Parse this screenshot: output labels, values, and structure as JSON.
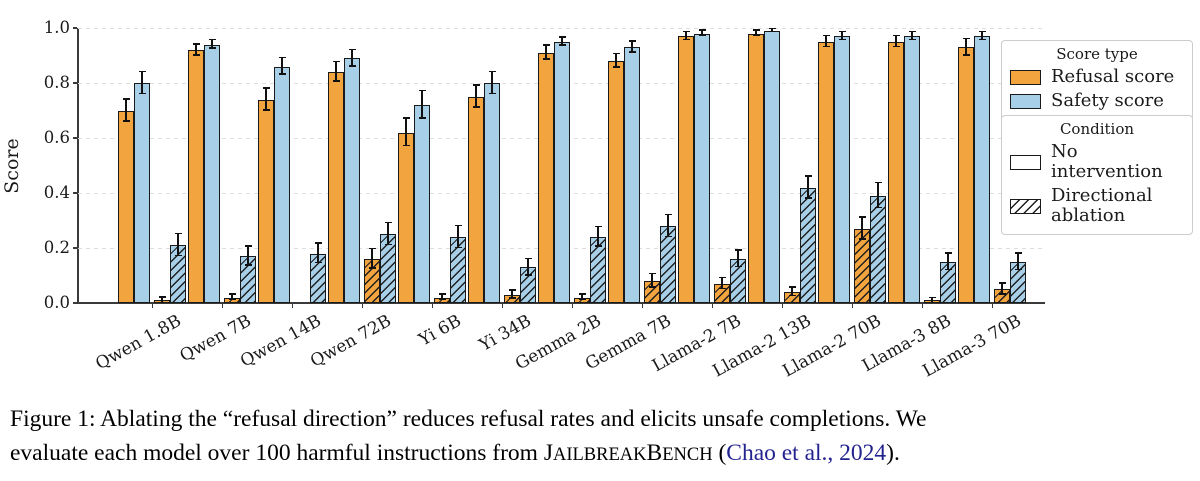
{
  "figure": {
    "ylabel": "Score",
    "yticks": [
      "0.0",
      "0.2",
      "0.4",
      "0.6",
      "0.8",
      "1.0"
    ],
    "legend": {
      "score_type": {
        "title": "Score type",
        "items": [
          {
            "label": "Refusal score",
            "color": "#F2A53E"
          },
          {
            "label": "Safety score",
            "color": "#A7D0E8"
          }
        ]
      },
      "condition": {
        "title": "Condition",
        "items": [
          {
            "label": "No intervention",
            "hatch": false
          },
          {
            "label": "Directional ablation",
            "hatch": true
          }
        ]
      }
    }
  },
  "chart_data": {
    "type": "bar",
    "title": "",
    "xlabel": "",
    "ylabel": "Score",
    "ylim": [
      0.0,
      1.0
    ],
    "ytick_values": [
      0.0,
      0.2,
      0.4,
      0.6,
      0.8,
      1.0
    ],
    "grid": "horizontal dashed",
    "legend_position": "upper right, outside axes",
    "categories": [
      "Qwen 1.8B",
      "Qwen 7B",
      "Qwen 14B",
      "Qwen 72B",
      "Yi 6B",
      "Yi 34B",
      "Gemma 2B",
      "Gemma 7B",
      "Llama-2 7B",
      "Llama-2 13B",
      "Llama-2 70B",
      "Llama-3 8B",
      "Llama-3 70B"
    ],
    "series": [
      {
        "name": "Refusal score — No intervention",
        "color": "#F2A53E",
        "hatch": false,
        "values": [
          0.7,
          0.92,
          0.74,
          0.84,
          0.62,
          0.75,
          0.91,
          0.88,
          0.97,
          0.98,
          0.95,
          0.95,
          0.93
        ],
        "errors": [
          0.04,
          0.02,
          0.04,
          0.035,
          0.05,
          0.04,
          0.025,
          0.025,
          0.015,
          0.01,
          0.02,
          0.02,
          0.03
        ]
      },
      {
        "name": "Safety score — No intervention",
        "color": "#A7D0E8",
        "hatch": false,
        "values": [
          0.8,
          0.94,
          0.86,
          0.89,
          0.72,
          0.8,
          0.95,
          0.93,
          0.98,
          0.99,
          0.97,
          0.97,
          0.97
        ],
        "errors": [
          0.04,
          0.015,
          0.03,
          0.03,
          0.05,
          0.04,
          0.015,
          0.02,
          0.01,
          0.005,
          0.015,
          0.015,
          0.015
        ]
      },
      {
        "name": "Refusal score — Directional ablation",
        "color": "#F2A53E",
        "hatch": true,
        "values": [
          0.01,
          0.02,
          0.0,
          0.16,
          0.02,
          0.03,
          0.02,
          0.08,
          0.07,
          0.04,
          0.27,
          0.01,
          0.05
        ],
        "errors": [
          0.01,
          0.01,
          0.0,
          0.035,
          0.01,
          0.015,
          0.01,
          0.025,
          0.02,
          0.015,
          0.04,
          0.008,
          0.02
        ]
      },
      {
        "name": "Safety score — Directional ablation",
        "color": "#A7D0E8",
        "hatch": true,
        "values": [
          0.21,
          0.17,
          0.18,
          0.25,
          0.24,
          0.13,
          0.24,
          0.28,
          0.16,
          0.42,
          0.39,
          0.15,
          0.15
        ],
        "errors": [
          0.04,
          0.035,
          0.035,
          0.04,
          0.04,
          0.03,
          0.035,
          0.04,
          0.03,
          0.04,
          0.045,
          0.03,
          0.03
        ]
      }
    ]
  },
  "caption": {
    "line1": "Figure 1: Ablating the “refusal direction” reduces refusal rates and elicits unsafe completions. We",
    "line2_prefix": "evaluate each model over 100 harmful instructions from ",
    "benchmark_parts": [
      "J",
      "AILBREAK",
      "B",
      "ENCH"
    ],
    "after_benchmark": " (",
    "citation_authors": "Chao et al.",
    "citation_sep": ", ",
    "citation_year": "2024",
    "after_citation": ").",
    "link_color": "#23238f"
  }
}
